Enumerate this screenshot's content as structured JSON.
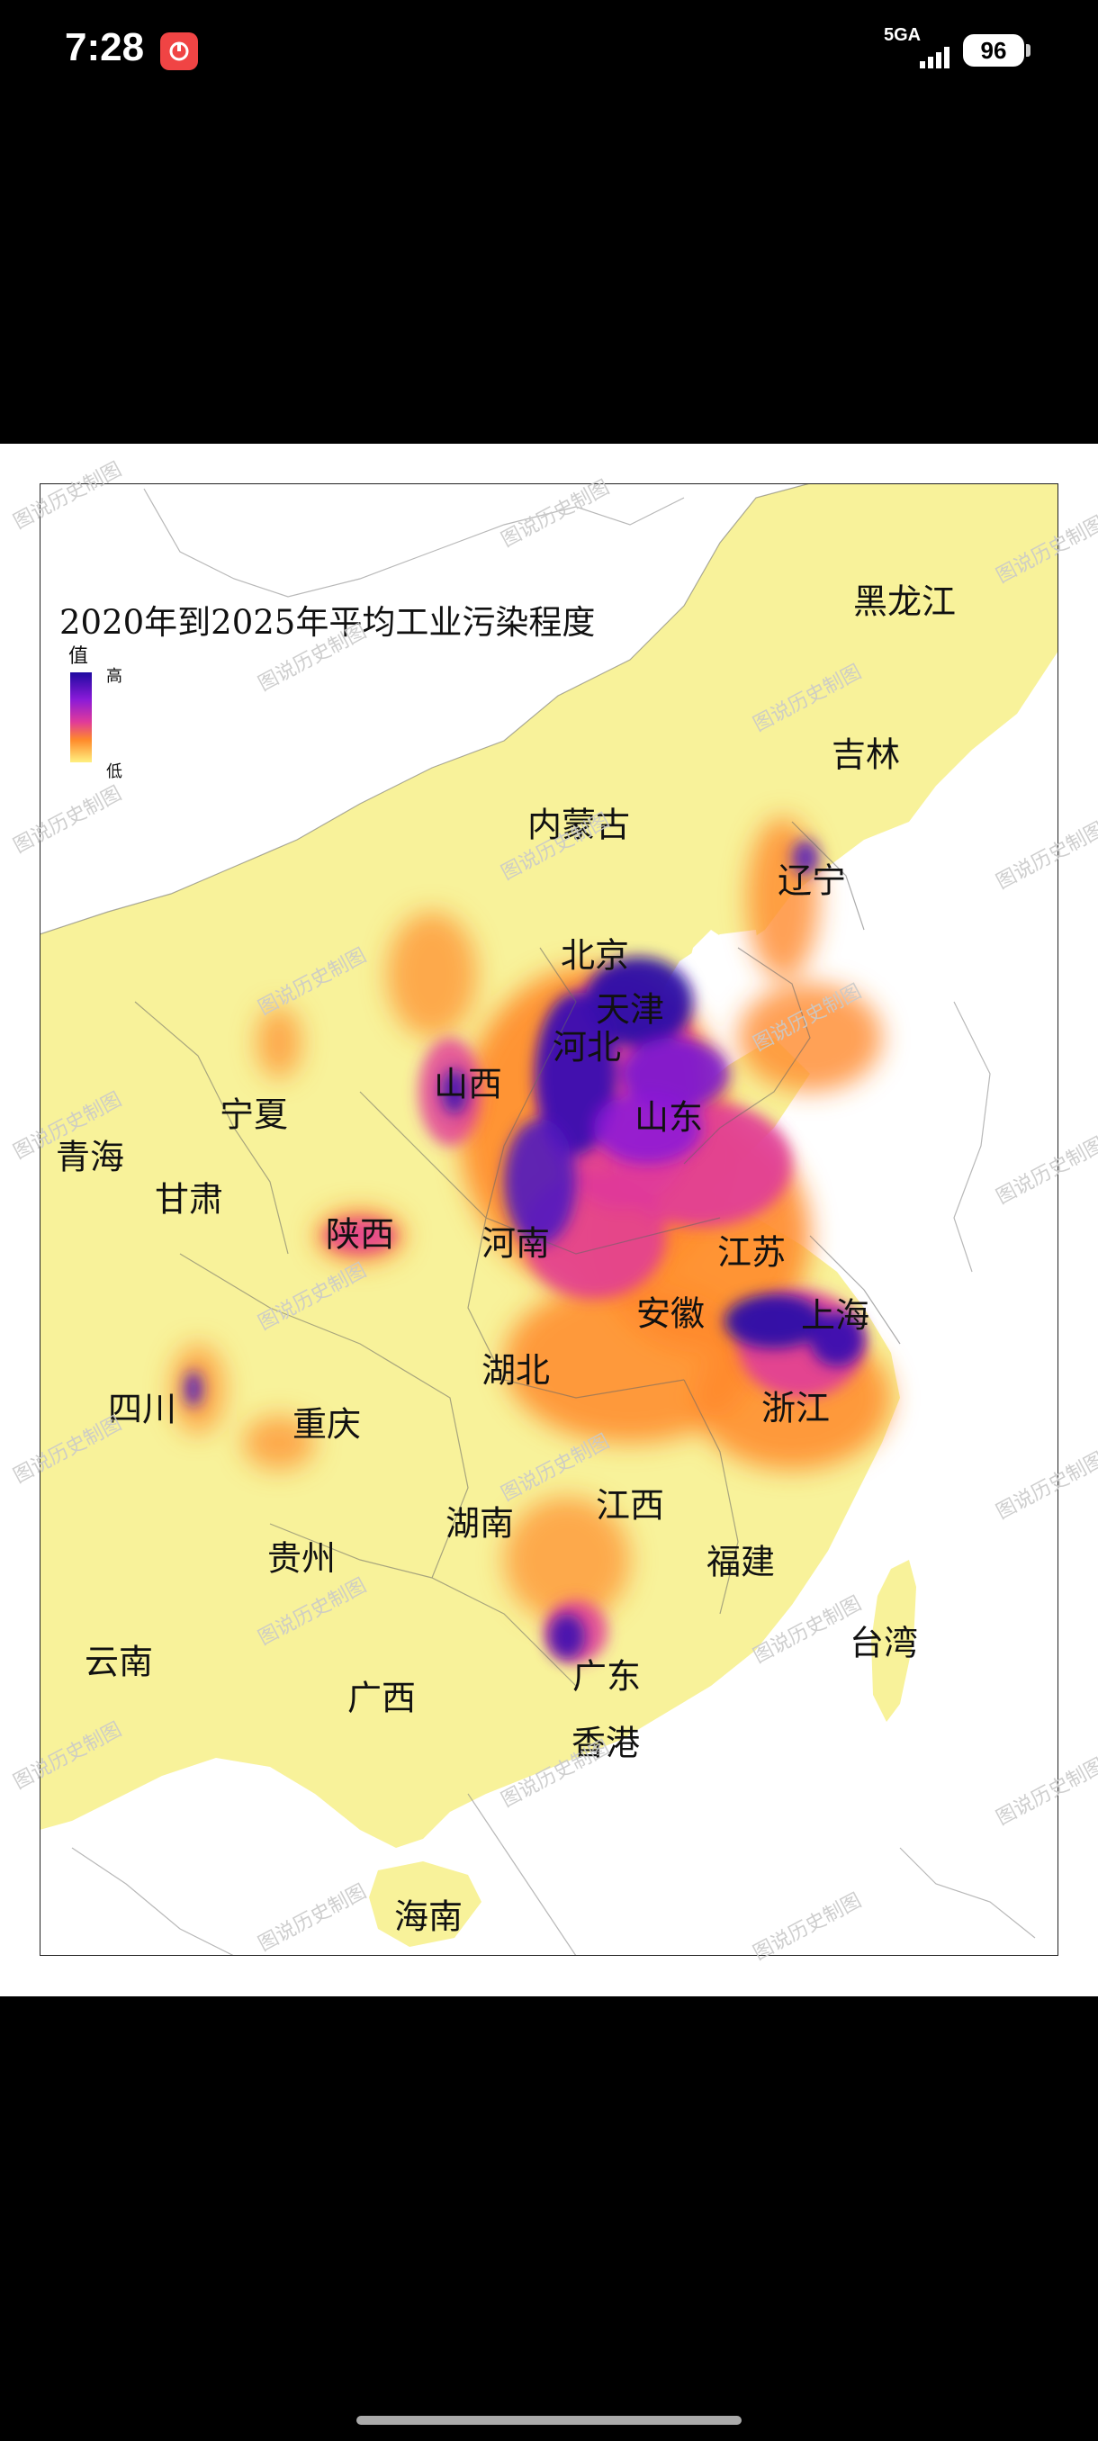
{
  "status_bar": {
    "time": "7:28",
    "network": "5GA",
    "battery": "96",
    "notification_icon": "app-notification-icon"
  },
  "map": {
    "title": "2020年到2025年平均工业污染程度",
    "legend": {
      "label": "值",
      "high": "高",
      "low": "低",
      "colors": [
        "#1f0aa0",
        "#8a1ad8",
        "#e03a9a",
        "#ff8a2a",
        "#fff080"
      ]
    },
    "provinces": [
      "黑龙江",
      "吉林",
      "内蒙古",
      "辽宁",
      "北京",
      "天津",
      "河北",
      "山西",
      "山东",
      "宁夏",
      "青海",
      "甘肃",
      "陕西",
      "河南",
      "江苏",
      "安徽",
      "上海",
      "湖北",
      "四川",
      "浙江",
      "重庆",
      "江西",
      "湖南",
      "贵州",
      "福建",
      "台湾",
      "云南",
      "广东",
      "广西",
      "香港",
      "海南"
    ],
    "watermark": "图说历史制图"
  }
}
